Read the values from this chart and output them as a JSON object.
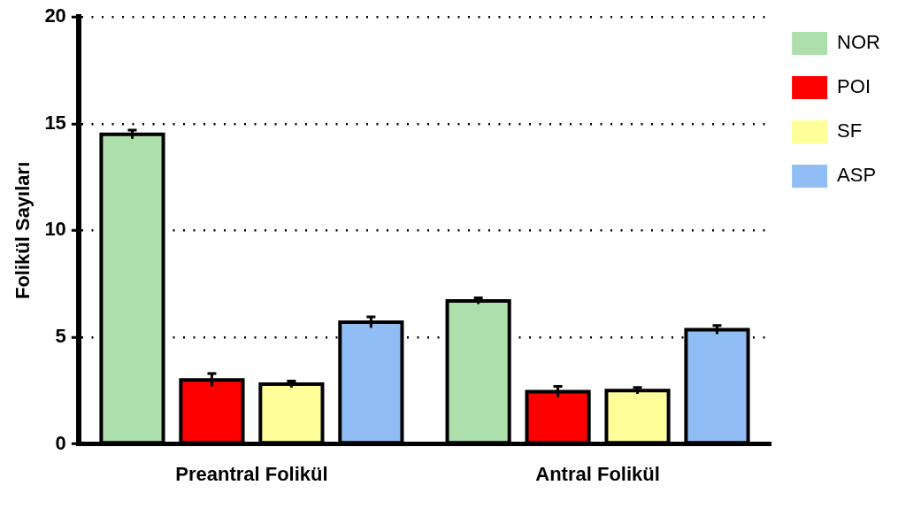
{
  "chart_data": {
    "type": "bar",
    "ylabel": "Folikül Sayıları",
    "categories": [
      "Preantral Folikül",
      "Antral Folikül"
    ],
    "series": [
      {
        "name": "NOR",
        "color": "#addfad",
        "values": [
          14.5,
          6.7
        ],
        "errors": [
          0.2,
          0.15
        ]
      },
      {
        "name": "POI",
        "color": "#ff0000",
        "values": [
          3.0,
          2.45
        ],
        "errors": [
          0.3,
          0.25
        ]
      },
      {
        "name": "SF",
        "color": "#ffff99",
        "values": [
          2.8,
          2.5
        ],
        "errors": [
          0.15,
          0.15
        ]
      },
      {
        "name": "ASP",
        "color": "#91bdf5",
        "values": [
          5.7,
          5.35
        ],
        "errors": [
          0.25,
          0.2
        ]
      }
    ],
    "ylim": [
      0,
      20
    ],
    "yticks": [
      0,
      5,
      10,
      15,
      20
    ],
    "grid": "y",
    "legend": "top right"
  }
}
